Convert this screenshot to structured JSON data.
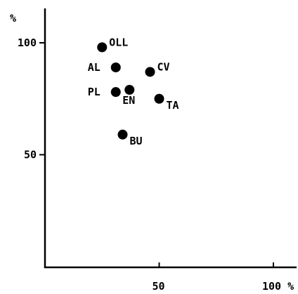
{
  "chart_data": {
    "type": "scatter",
    "title": "",
    "xlabel": "%",
    "ylabel": "%",
    "xlim": [
      0,
      100
    ],
    "ylim": [
      0,
      105
    ],
    "grid": false,
    "x_ticks": [
      {
        "value": 50,
        "label": "50"
      },
      {
        "value": 100,
        "label": "100 %"
      }
    ],
    "y_ticks": [
      {
        "value": 50,
        "label": "50"
      },
      {
        "value": 100,
        "label": "100"
      }
    ],
    "y_unit_label": "%",
    "points": [
      {
        "label": "OLL",
        "x": 25,
        "y": 98,
        "label_pos": "right-up"
      },
      {
        "label": "AL",
        "x": 31,
        "y": 89,
        "label_pos": "left"
      },
      {
        "label": "CV",
        "x": 46,
        "y": 87,
        "label_pos": "right-up"
      },
      {
        "label": "PL",
        "x": 31,
        "y": 78,
        "label_pos": "left"
      },
      {
        "label": "EN",
        "x": 37,
        "y": 79,
        "label_pos": "below"
      },
      {
        "label": "TA",
        "x": 50,
        "y": 75,
        "label_pos": "right-down"
      },
      {
        "label": "BU",
        "x": 34,
        "y": 59,
        "label_pos": "right-down"
      }
    ],
    "point_color": "#000000"
  }
}
